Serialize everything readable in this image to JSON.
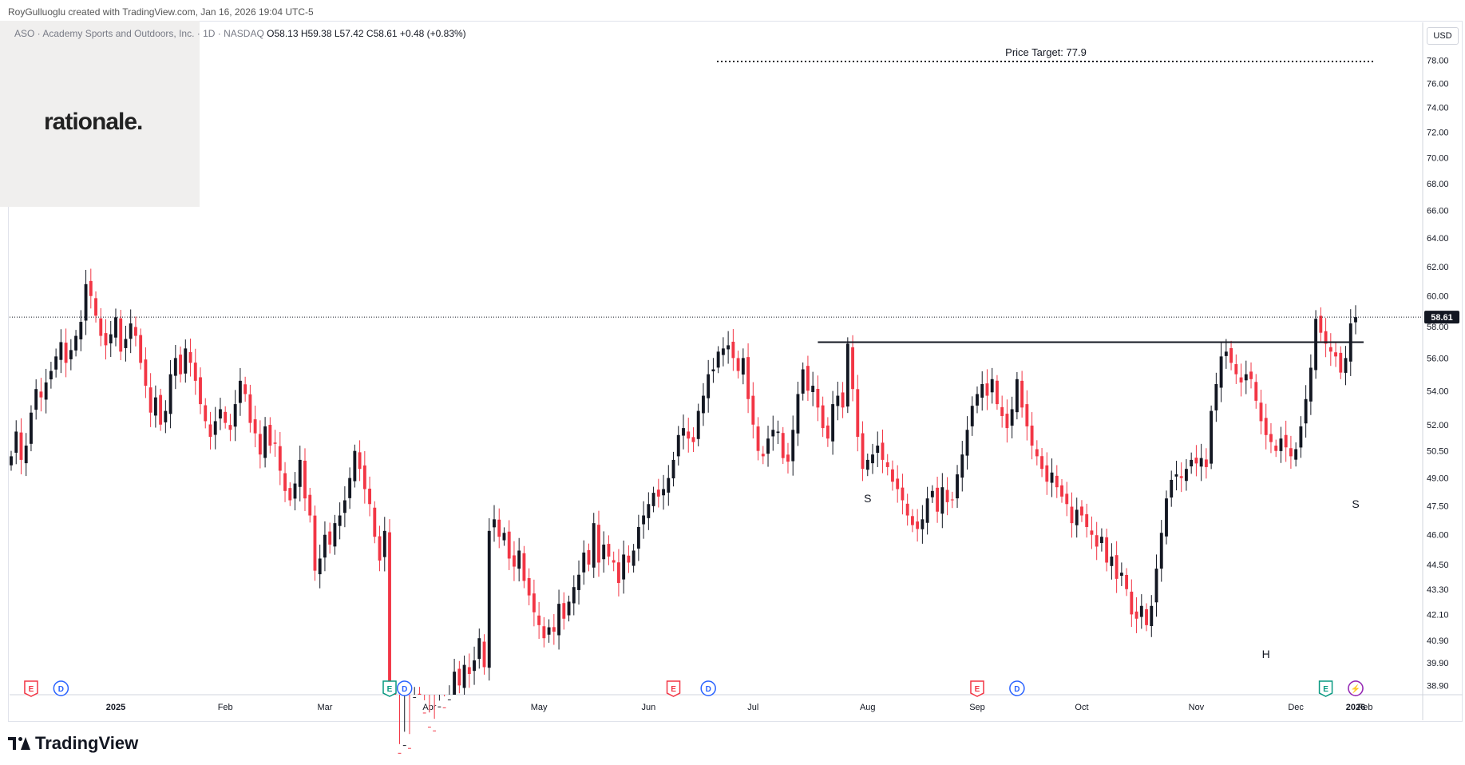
{
  "header": {
    "credit": "RoyGulluoglu created with TradingView.com, Jan 16, 2026 19:04 UTC-5",
    "symbol_text": "ASO · Academy Sports and Outdoors, Inc. · 1D · NASDAQ",
    "ohlc_text": "O58.13  H59.38  L57.42  C58.61  +0.48 (+0.83%)"
  },
  "logo": {
    "text": "rationale."
  },
  "currency": "USD",
  "footer": {
    "brand": "TradingView",
    "brand_icon": "tradingview-logo-icon"
  },
  "colors": {
    "up": "#131722",
    "down": "#f23645",
    "accent": "#2962ff",
    "earnings": "#f23645",
    "earnings_green": "#089981"
  },
  "chart_data": {
    "type": "candlestick",
    "symbol": "ASO",
    "interval": "1D",
    "y_scale": "log",
    "ylim": [
      38.5,
      80.5
    ],
    "y_ticks": [
      "78.00",
      "76.00",
      "74.00",
      "72.00",
      "70.00",
      "68.00",
      "66.00",
      "64.00",
      "62.00",
      "60.00",
      "58.00",
      "56.00",
      "54.00",
      "52.00",
      "50.50",
      "49.00",
      "47.50",
      "46.00",
      "44.50",
      "43.30",
      "42.10",
      "40.90",
      "39.90",
      "38.90"
    ],
    "x_ticks": [
      "2025",
      "Feb",
      "Mar",
      "Apr",
      "May",
      "Jun",
      "Jul",
      "Aug",
      "Sep",
      "Oct",
      "Nov",
      "Dec",
      "2026",
      "Feb"
    ],
    "last_price": "58.61",
    "price_target": {
      "label": "Price Target: 77.9",
      "value": 77.9
    },
    "neckline": {
      "value": 57.0
    },
    "pattern_labels": [
      {
        "text": "S",
        "date": "2025-08-01",
        "price": 48.3
      },
      {
        "text": "H",
        "date": "2025-11-21",
        "price": 40.6
      },
      {
        "text": "S",
        "date": "2026-01-02",
        "price": 48.0
      }
    ],
    "events": [
      {
        "type": "E",
        "date": "2024-12-10",
        "color": "#f23645"
      },
      {
        "type": "D",
        "date": "2024-12-18",
        "color": "#2962ff"
      },
      {
        "type": "E",
        "date": "2025-03-20",
        "color": "#089981"
      },
      {
        "type": "D",
        "date": "2025-03-25",
        "color": "#2962ff"
      },
      {
        "type": "E",
        "date": "2025-06-09",
        "color": "#f23645"
      },
      {
        "type": "D",
        "date": "2025-06-18",
        "color": "#2962ff"
      },
      {
        "type": "E",
        "date": "2025-09-02",
        "color": "#f23645"
      },
      {
        "type": "D",
        "date": "2025-09-12",
        "color": "#2962ff"
      },
      {
        "type": "E",
        "date": "2025-12-09",
        "color": "#089981"
      },
      {
        "type": "D",
        "date": "2025-12-19",
        "color": "#2962ff"
      },
      {
        "type": "S",
        "date": "2026-01-15",
        "color": "#9c27b0"
      }
    ],
    "closes": [
      50.2,
      51.6,
      50.0,
      50.8,
      52.7,
      54.1,
      53.6,
      54.5,
      55.2,
      56.1,
      57.0,
      55.7,
      56.5,
      57.4,
      58.3,
      60.8,
      60.0,
      58.7,
      57.4,
      56.8,
      57.5,
      58.6,
      56.4,
      57.2,
      58.2,
      57.4,
      55.7,
      54.3,
      52.7,
      53.6,
      52.0,
      52.8,
      55.0,
      56.0,
      55.0,
      56.6,
      55.7,
      54.6,
      53.2,
      52.2,
      51.3,
      52.2,
      52.9,
      52.1,
      51.7,
      53.2,
      54.6,
      53.8,
      52.1,
      51.5,
      50.3,
      51.9,
      50.8,
      50.9,
      49.4,
      48.3,
      47.8,
      48.7,
      50.0,
      47.9,
      47.0,
      44.2,
      44.8,
      46.0,
      45.5,
      46.6,
      47.0,
      47.8,
      49.0,
      50.5,
      49.5,
      48.4,
      47.6,
      45.9,
      44.7,
      46.2,
      38.8,
      36.0,
      35.3,
      36.4,
      35.6,
      38.4,
      37.7,
      37.3,
      37.0,
      36.4,
      38.0,
      37.2,
      38.3,
      39.5,
      38.9,
      39.8,
      39.4,
      40.0,
      41.0,
      39.7,
      46.2,
      46.8,
      45.9,
      46.1,
      44.8,
      44.4,
      45.2,
      43.7,
      43.0,
      42.2,
      41.6,
      41.0,
      41.5,
      41.3,
      42.6,
      41.9,
      42.7,
      43.4,
      44.0,
      45.1,
      44.5,
      46.6,
      44.6,
      45.5,
      44.9,
      44.6,
      43.6,
      45.0,
      44.6,
      45.2,
      46.4,
      47.0,
      47.6,
      48.2,
      48.0,
      48.4,
      49.0,
      50.0,
      51.4,
      51.8,
      51.2,
      51.0,
      52.8,
      53.7,
      55.0,
      55.3,
      56.4,
      56.6,
      56.8,
      56.0,
      55.2,
      56.0,
      53.5,
      52.0,
      50.5,
      50.2,
      51.2,
      51.7,
      51.6,
      50.1,
      49.9,
      51.7,
      53.8,
      55.3,
      54.0,
      54.3,
      53.0,
      51.8,
      51.2,
      53.2,
      53.7,
      53.0,
      56.9,
      54.1,
      51.3,
      49.5,
      50.0,
      50.3,
      50.8,
      50.0,
      49.6,
      48.8,
      48.4,
      47.8,
      47.0,
      46.5,
      46.3,
      46.8,
      47.9,
      48.3,
      47.2,
      48.5,
      47.7,
      47.8,
      49.2,
      50.3,
      51.7,
      53.1,
      53.8,
      54.4,
      53.7,
      54.7,
      53.2,
      52.5,
      51.8,
      52.9,
      54.7,
      53.0,
      51.9,
      50.8,
      50.2,
      49.5,
      48.8,
      49.3,
      48.5,
      48.0,
      47.6,
      46.6,
      47.3,
      47.0,
      46.4,
      46.0,
      45.4,
      45.9,
      44.6,
      44.9,
      43.8,
      44.1,
      43.3,
      42.1,
      41.9,
      42.5,
      41.6,
      42.5,
      44.3,
      46.1,
      47.9,
      48.9,
      49.2,
      49.0,
      49.5,
      50.0,
      49.8,
      50.1,
      49.6,
      52.8,
      54.4,
      56.1,
      56.4,
      55.7,
      55.0,
      54.5,
      55.0,
      54.7,
      53.4,
      52.2,
      51.4,
      51.0,
      50.5,
      51.2,
      50.7,
      50.2,
      50.6,
      51.9,
      53.5,
      55.4,
      58.5,
      57.6,
      56.9,
      56.4,
      56.1,
      55.1,
      56.0,
      58.2,
      58.61
    ]
  }
}
